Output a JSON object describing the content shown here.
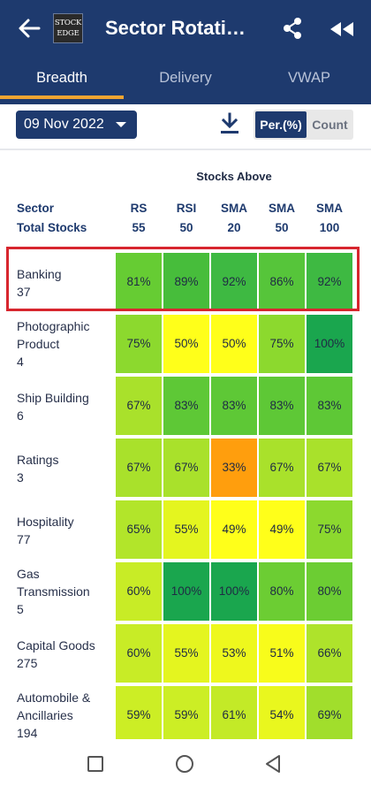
{
  "header": {
    "logo_line1": "STOCK",
    "logo_line2": "EDGE",
    "title": "Sector Rotation"
  },
  "tabs": [
    {
      "label": "Breadth"
    },
    {
      "label": "Delivery"
    },
    {
      "label": "VWAP"
    }
  ],
  "controls": {
    "date": "09 Nov 2022",
    "toggle_on": "Per.(%)",
    "toggle_off": "Count"
  },
  "table": {
    "group_header": "Stocks Above",
    "sector_header": "Sector",
    "total_header": "Total Stocks",
    "columns": [
      {
        "top": "RS",
        "bottom": "55"
      },
      {
        "top": "RSI",
        "bottom": "50"
      },
      {
        "top": "SMA",
        "bottom": "20"
      },
      {
        "top": "SMA",
        "bottom": "50"
      },
      {
        "top": "SMA",
        "bottom": "100"
      }
    ],
    "rows": [
      {
        "lines": [
          "Banking",
          "37"
        ],
        "cells": [
          {
            "value": "81%",
            "color": "#66cc33"
          },
          {
            "value": "89%",
            "color": "#47bd3b"
          },
          {
            "value": "92%",
            "color": "#3eb942"
          },
          {
            "value": "86%",
            "color": "#56c53a"
          },
          {
            "value": "92%",
            "color": "#3eb942"
          }
        ]
      },
      {
        "lines": [
          "Photographic",
          "Product",
          "4"
        ],
        "cells": [
          {
            "value": "75%",
            "color": "#8cd92e"
          },
          {
            "value": "50%",
            "color": "#ffff1a"
          },
          {
            "value": "50%",
            "color": "#ffff1a"
          },
          {
            "value": "75%",
            "color": "#8cd92e"
          },
          {
            "value": "100%",
            "color": "#1aa64e"
          }
        ]
      },
      {
        "lines": [
          "Ship Building",
          "6"
        ],
        "cells": [
          {
            "value": "67%",
            "color": "#a9e12b"
          },
          {
            "value": "83%",
            "color": "#5ec836"
          },
          {
            "value": "83%",
            "color": "#5ec836"
          },
          {
            "value": "83%",
            "color": "#5ec836"
          },
          {
            "value": "83%",
            "color": "#5ec836"
          }
        ]
      },
      {
        "lines": [
          "Ratings",
          "3"
        ],
        "cells": [
          {
            "value": "67%",
            "color": "#a9e12b"
          },
          {
            "value": "67%",
            "color": "#a9e12b"
          },
          {
            "value": "33%",
            "color": "#ff9e0d"
          },
          {
            "value": "67%",
            "color": "#a9e12b"
          },
          {
            "value": "67%",
            "color": "#a9e12b"
          }
        ]
      },
      {
        "lines": [
          "Hospitality",
          "77"
        ],
        "cells": [
          {
            "value": "65%",
            "color": "#b2e52a"
          },
          {
            "value": "55%",
            "color": "#e4f51f"
          },
          {
            "value": "49%",
            "color": "#ffff1a"
          },
          {
            "value": "49%",
            "color": "#ffff1a"
          },
          {
            "value": "75%",
            "color": "#8cd92e"
          }
        ]
      },
      {
        "lines": [
          "Gas",
          "Transmission",
          "5"
        ],
        "cells": [
          {
            "value": "60%",
            "color": "#c8ec26"
          },
          {
            "value": "100%",
            "color": "#1aa64e"
          },
          {
            "value": "100%",
            "color": "#1aa64e"
          },
          {
            "value": "80%",
            "color": "#6ccd33"
          },
          {
            "value": "80%",
            "color": "#6ccd33"
          }
        ]
      },
      {
        "lines": [
          "Capital Goods",
          "275"
        ],
        "cells": [
          {
            "value": "60%",
            "color": "#c8ec26"
          },
          {
            "value": "55%",
            "color": "#e4f51f"
          },
          {
            "value": "53%",
            "color": "#eef81d"
          },
          {
            "value": "51%",
            "color": "#f8fc1b"
          },
          {
            "value": "66%",
            "color": "#aee32b"
          }
        ]
      },
      {
        "lines": [
          "Automobile &",
          "Ancillaries",
          "194"
        ],
        "cells": [
          {
            "value": "59%",
            "color": "#ccee25"
          },
          {
            "value": "59%",
            "color": "#ccee25"
          },
          {
            "value": "61%",
            "color": "#c3ea27"
          },
          {
            "value": "54%",
            "color": "#e9f71e"
          },
          {
            "value": "69%",
            "color": "#a1de2c"
          }
        ]
      }
    ]
  }
}
